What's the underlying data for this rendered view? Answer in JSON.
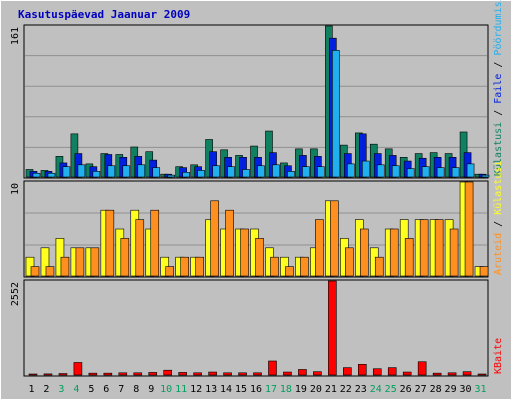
{
  "chart_data": {
    "type": "bar",
    "title": "Kasutuspäevad Jaanuar 2009",
    "categories": [
      "1",
      "2",
      "3",
      "4",
      "5",
      "6",
      "7",
      "8",
      "9",
      "10",
      "11",
      "12",
      "13",
      "14",
      "15",
      "16",
      "17",
      "18",
      "19",
      "20",
      "21",
      "22",
      "23",
      "24",
      "25",
      "26",
      "27",
      "28",
      "29",
      "30",
      "31"
    ],
    "weekend_days": [
      "3",
      "4",
      "10",
      "11",
      "17",
      "18",
      "24",
      "25",
      "31"
    ],
    "colors": {
      "background": "#c0c0c0",
      "frame": "#ffffff",
      "title": "#0000c0",
      "weekday_label": "#000000",
      "weekend_label": "#00a060",
      "visits": "#108060",
      "pages": "#0020e0",
      "files": "#20b0f0",
      "sites": "#ff9020",
      "hits": "#ffff20",
      "kbytes": "#ff0000"
    },
    "panels": [
      {
        "id": "top",
        "y_max_label": "161",
        "ylim": [
          0,
          161
        ],
        "legend": [
          {
            "text": "Külastusi",
            "color": "#108060"
          },
          {
            "text": " / ",
            "color": "#000000"
          },
          {
            "text": "Faile",
            "color": "#0020e0"
          },
          {
            "text": " / ",
            "color": "#000000"
          },
          {
            "text": "Pöördumisi",
            "color": "#20b0f0"
          }
        ],
        "series": [
          {
            "key": "visits",
            "values": [
              8,
              7,
              22,
              46,
              14,
              25,
              24,
              32,
              27,
              3,
              11,
              13,
              40,
              29,
              23,
              33,
              49,
              15,
              30,
              30,
              161,
              34,
              47,
              35,
              30,
              21,
              25,
              26,
              25,
              48,
              3
            ]
          },
          {
            "key": "pages",
            "values": [
              6,
              6,
              15,
              25,
              11,
              24,
              21,
              22,
              18,
              3,
              10,
              11,
              27,
              21,
              21,
              21,
              26,
              12,
              23,
              22,
              148,
              25,
              46,
              25,
              23,
              17,
              20,
              21,
              21,
              26,
              3
            ]
          },
          {
            "key": "files",
            "values": [
              4,
              4,
              11,
              13,
              6,
              12,
              12,
              13,
              10,
              2,
              5,
              7,
              12,
              11,
              8,
              12,
              13,
              6,
              11,
              11,
              135,
              14,
              17,
              13,
              12,
              9,
              11,
              10,
              10,
              14,
              2
            ]
          }
        ]
      },
      {
        "id": "middle",
        "y_max_label": "10",
        "ylim": [
          0,
          10
        ],
        "legend": [
          {
            "text": "Aruteid",
            "color": "#ff9020"
          },
          {
            "text": " / ",
            "color": "#000000"
          },
          {
            "text": "Külastusi",
            "color": "#ffff20"
          }
        ],
        "series": [
          {
            "key": "hits",
            "values": [
              2,
              3,
              4,
              3,
              3,
              7,
              5,
              7,
              5,
              2,
              2,
              2,
              6,
              5,
              5,
              5,
              3,
              2,
              2,
              3,
              8,
              4,
              6,
              3,
              5,
              6,
              6,
              6,
              6,
              10,
              1
            ]
          },
          {
            "key": "sites",
            "values": [
              1,
              1,
              2,
              3,
              3,
              7,
              4,
              6,
              7,
              1,
              2,
              2,
              8,
              7,
              5,
              4,
              2,
              1,
              2,
              6,
              8,
              3,
              5,
              2,
              5,
              4,
              6,
              6,
              5,
              10,
              1
            ]
          }
        ]
      },
      {
        "id": "bottom",
        "y_max_label": "2552",
        "ylim": [
          0,
          2552
        ],
        "legend": [
          {
            "text": "KBaite",
            "color": "#ff0000"
          }
        ],
        "series": [
          {
            "key": "kbytes",
            "values": [
              20,
              30,
              40,
              340,
              50,
              50,
              60,
              60,
              70,
              130,
              70,
              60,
              80,
              60,
              60,
              60,
              380,
              80,
              150,
              90,
              2552,
              200,
              290,
              170,
              200,
              80,
              360,
              50,
              60,
              90,
              20
            ]
          }
        ]
      }
    ]
  }
}
